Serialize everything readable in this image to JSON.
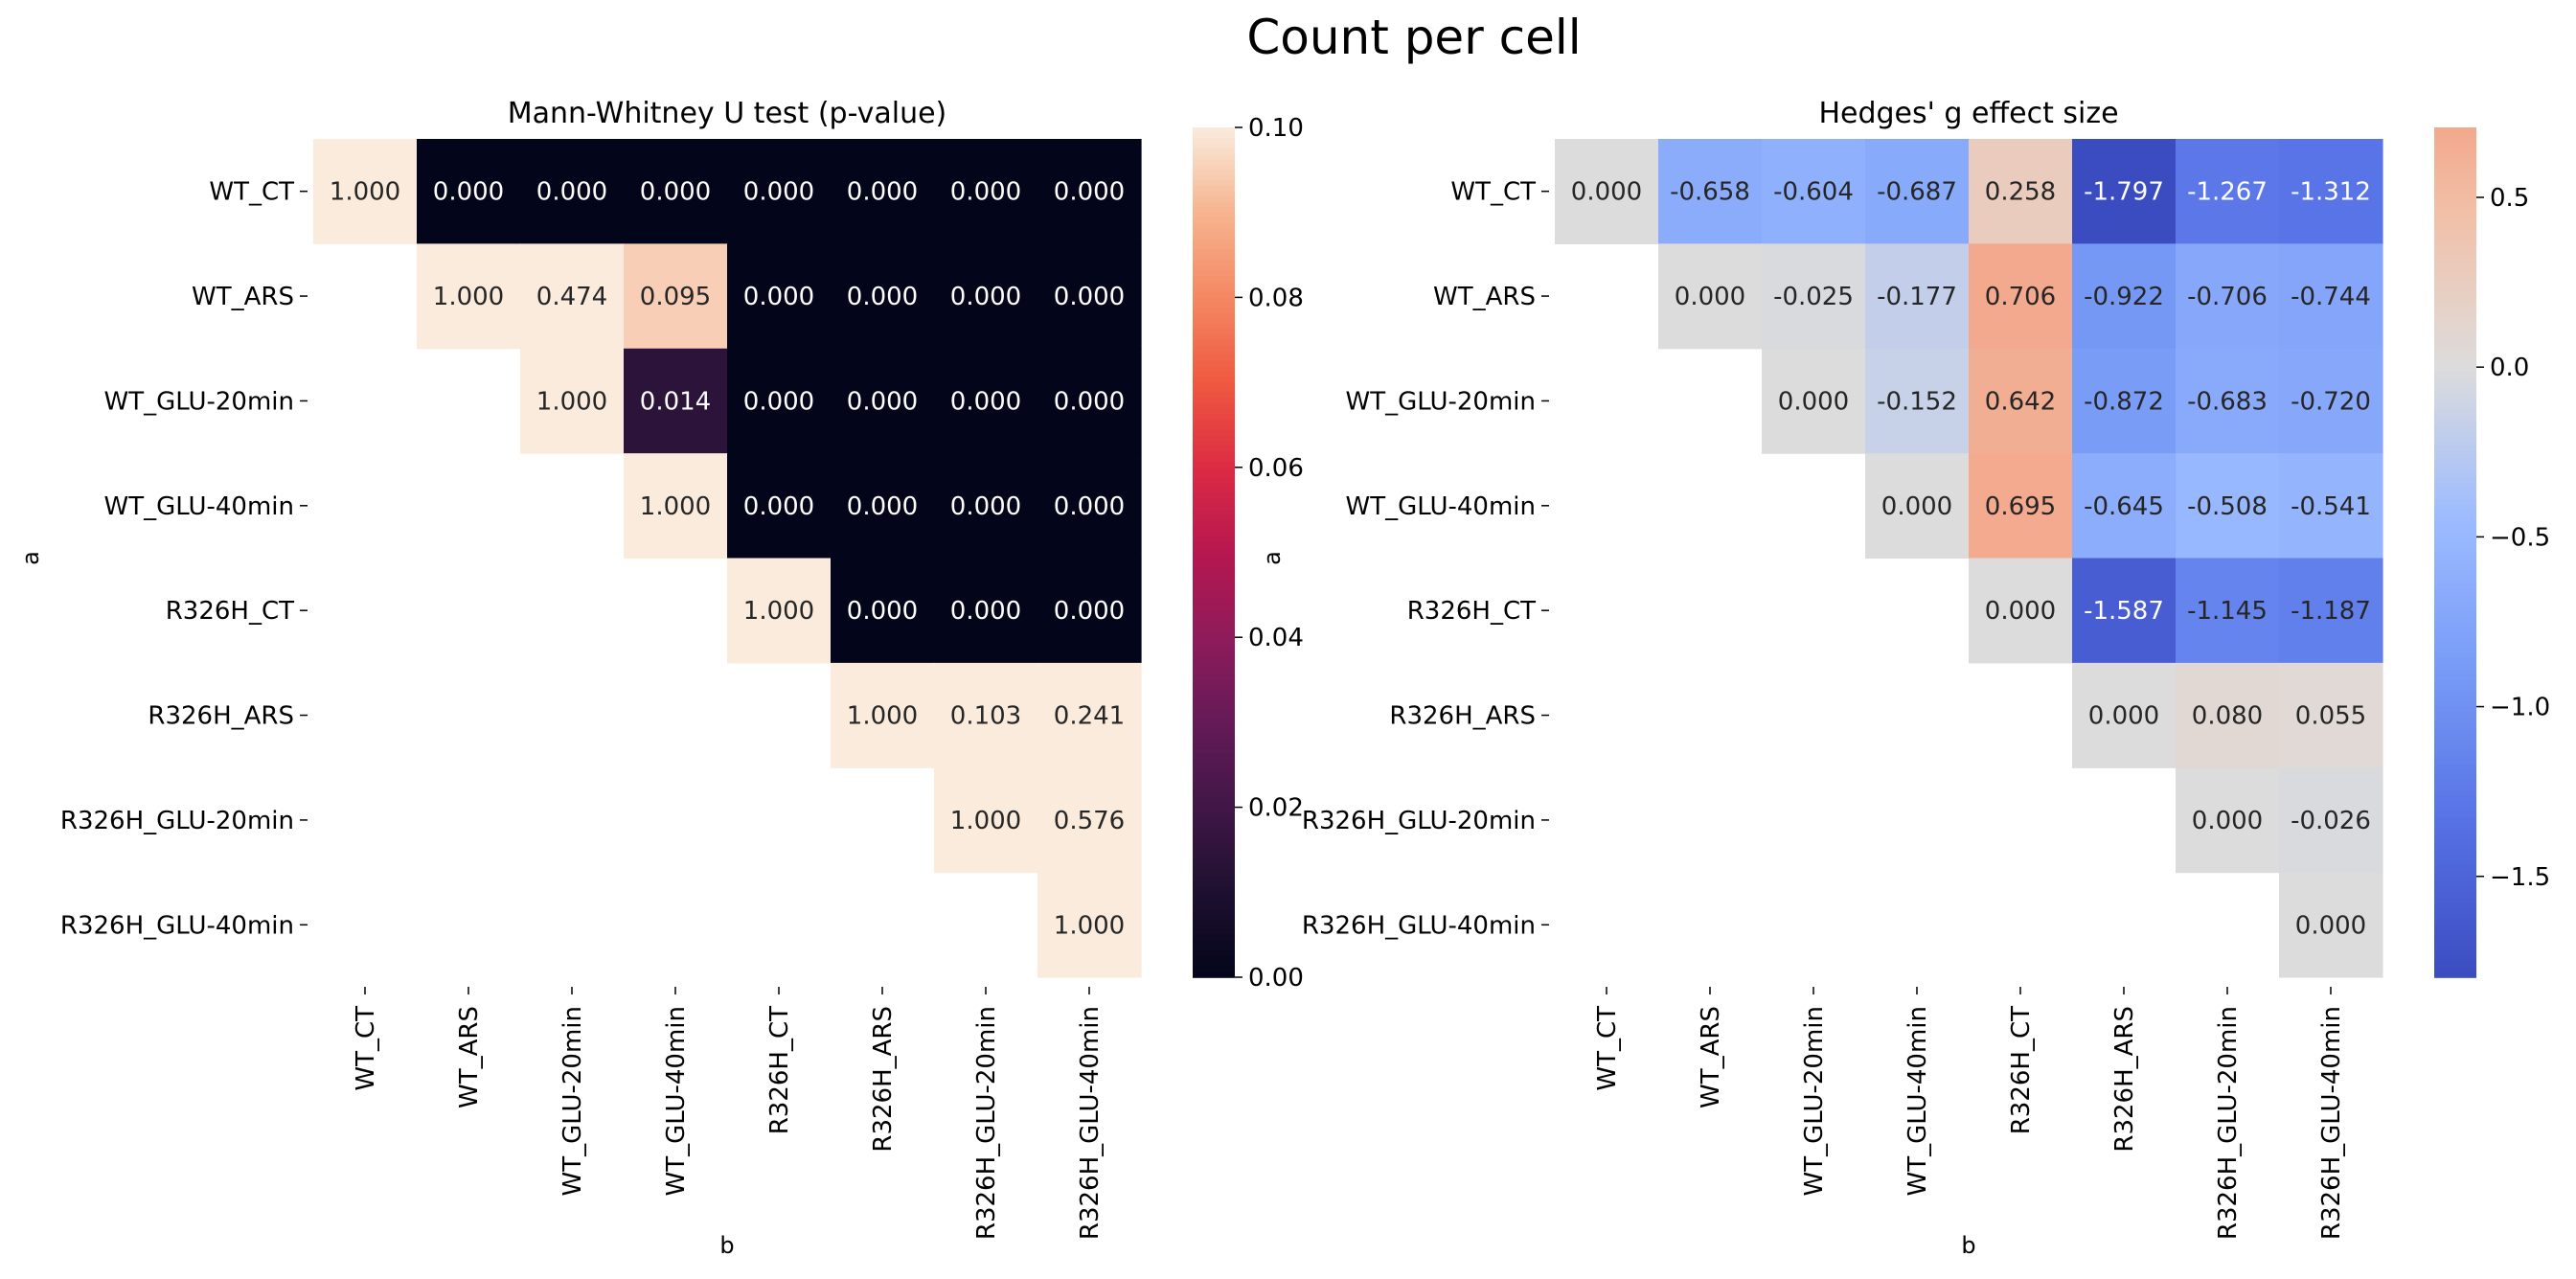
{
  "figure": {
    "title": "Count per cell"
  },
  "chart_data": [
    {
      "type": "heatmap",
      "title": "Mann-Whitney U test (p-value)",
      "xlabel": "b",
      "ylabel": "a",
      "rows": [
        "WT_CT",
        "WT_ARS",
        "WT_GLU-20min",
        "WT_GLU-40min",
        "R326H_CT",
        "R326H_ARS",
        "R326H_GLU-20min",
        "R326H_GLU-40min"
      ],
      "cols": [
        "WT_CT",
        "WT_ARS",
        "WT_GLU-20min",
        "WT_GLU-40min",
        "R326H_CT",
        "R326H_ARS",
        "R326H_GLU-20min",
        "R326H_GLU-40min"
      ],
      "values": [
        [
          1.0,
          0.0,
          0.0,
          0.0,
          0.0,
          0.0,
          0.0,
          0.0
        ],
        [
          null,
          1.0,
          0.474,
          0.095,
          0.0,
          0.0,
          0.0,
          0.0
        ],
        [
          null,
          null,
          1.0,
          0.014,
          0.0,
          0.0,
          0.0,
          0.0
        ],
        [
          null,
          null,
          null,
          1.0,
          0.0,
          0.0,
          0.0,
          0.0
        ],
        [
          null,
          null,
          null,
          null,
          1.0,
          0.0,
          0.0,
          0.0
        ],
        [
          null,
          null,
          null,
          null,
          null,
          1.0,
          0.103,
          0.241
        ],
        [
          null,
          null,
          null,
          null,
          null,
          null,
          1.0,
          0.576
        ],
        [
          null,
          null,
          null,
          null,
          null,
          null,
          null,
          1.0
        ]
      ],
      "colormap": "rocket",
      "vmin": 0.0,
      "vmax": 0.1,
      "colorbar_ticks": [
        "0.00",
        "0.02",
        "0.04",
        "0.06",
        "0.08",
        "0.10"
      ],
      "colorbar_tick_values": [
        0.0,
        0.02,
        0.04,
        0.06,
        0.08,
        0.1
      ]
    },
    {
      "type": "heatmap",
      "title": "Hedges' g effect size",
      "xlabel": "b",
      "ylabel": "a",
      "rows": [
        "WT_CT",
        "WT_ARS",
        "WT_GLU-20min",
        "WT_GLU-40min",
        "R326H_CT",
        "R326H_ARS",
        "R326H_GLU-20min",
        "R326H_GLU-40min"
      ],
      "cols": [
        "WT_CT",
        "WT_ARS",
        "WT_GLU-20min",
        "WT_GLU-40min",
        "R326H_CT",
        "R326H_ARS",
        "R326H_GLU-20min",
        "R326H_GLU-40min"
      ],
      "values": [
        [
          0.0,
          -0.658,
          -0.604,
          -0.687,
          0.258,
          -1.797,
          -1.267,
          -1.312
        ],
        [
          null,
          0.0,
          -0.025,
          -0.177,
          0.706,
          -0.922,
          -0.706,
          -0.744
        ],
        [
          null,
          null,
          0.0,
          -0.152,
          0.642,
          -0.872,
          -0.683,
          -0.72
        ],
        [
          null,
          null,
          null,
          0.0,
          0.695,
          -0.645,
          -0.508,
          -0.541
        ],
        [
          null,
          null,
          null,
          null,
          0.0,
          -1.587,
          -1.145,
          -1.187
        ],
        [
          null,
          null,
          null,
          null,
          null,
          0.0,
          0.08,
          0.055
        ],
        [
          null,
          null,
          null,
          null,
          null,
          null,
          0.0,
          -0.026
        ],
        [
          null,
          null,
          null,
          null,
          null,
          null,
          null,
          0.0
        ]
      ],
      "colormap": "coolwarm",
      "vmin": -1.797,
      "vmax": 0.706,
      "center": 0.0,
      "colorbar_ticks": [
        "−1.5",
        "−1.0",
        "−0.5",
        "0.0",
        "0.5"
      ],
      "colorbar_tick_values": [
        -1.5,
        -1.0,
        -0.5,
        0.0,
        0.5
      ]
    }
  ]
}
